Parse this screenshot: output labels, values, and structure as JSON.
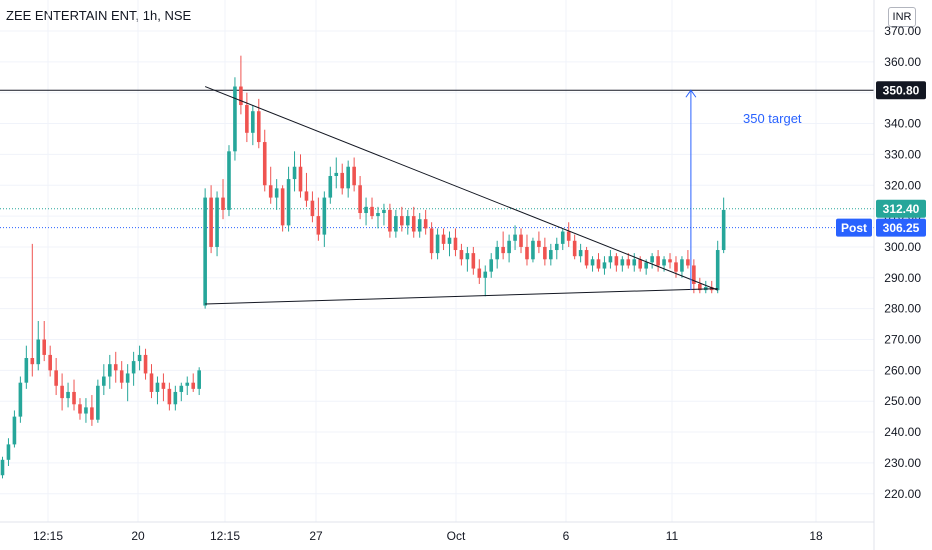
{
  "header": {
    "title": "ZEE ENTERTAIN ENT, 1h, NSE"
  },
  "currency_label": "INR",
  "annotation": {
    "target_text": "350 target"
  },
  "colors": {
    "up": "#26a69a",
    "down": "#ef5350",
    "trend_line": "#131722",
    "arrow": "#2962ff",
    "last_price_bg": "#26a69a",
    "post_bg": "#2962ff",
    "level_bg": "#131722"
  },
  "chart_data": {
    "type": "candlestick",
    "title": "ZEE ENTERTAIN ENT, 1h, NSE",
    "ylim": [
      210,
      374
    ],
    "y_ticks": [
      220,
      230,
      240,
      250,
      260,
      270,
      280,
      290,
      300,
      310,
      320,
      330,
      340,
      350,
      360,
      370
    ],
    "y_tick_labels": [
      "220.00",
      "230.00",
      "240.00",
      "250.00",
      "260.00",
      "270.00",
      "280.00",
      "290.00",
      "300.00",
      "310.00",
      "320.00",
      "330.00",
      "340.00",
      "350.00",
      "360.00",
      "370.00"
    ],
    "x_ticks": [
      "12:15",
      "20",
      "12:15",
      "27",
      "Oct",
      "6",
      "11",
      "18"
    ],
    "price_labels": [
      {
        "text": "350.80",
        "value": 350.8,
        "kind": "level"
      },
      {
        "text": "312.40",
        "value": 312.4,
        "kind": "last"
      },
      {
        "text": "306.25",
        "value": 306.25,
        "kind": "post",
        "tag": "Post"
      }
    ],
    "horizontal_level": 350.8,
    "trend_lines": [
      {
        "name": "upper",
        "from": {
          "bar": 34,
          "price": 352
        },
        "to": {
          "bar": 120,
          "price": 286
        }
      },
      {
        "name": "lower",
        "from": {
          "bar": 34,
          "price": 281.5
        },
        "to": {
          "bar": 120,
          "price": 286.5
        }
      }
    ],
    "target_arrow": {
      "bar": 115,
      "from": 286,
      "to": 350.8
    },
    "candles": [
      [
        226,
        232,
        225,
        231
      ],
      [
        231,
        238,
        229,
        236
      ],
      [
        236,
        247,
        235,
        245
      ],
      [
        245,
        258,
        243,
        256
      ],
      [
        256,
        268,
        254,
        264
      ],
      [
        264,
        301,
        258,
        262
      ],
      [
        262,
        276,
        260,
        270
      ],
      [
        270,
        276,
        263,
        265
      ],
      [
        265,
        268,
        258,
        260
      ],
      [
        260,
        264,
        252,
        255
      ],
      [
        255,
        259,
        247,
        251
      ],
      [
        251,
        256,
        248,
        253
      ],
      [
        253,
        257,
        247,
        249
      ],
      [
        249,
        251,
        244,
        246
      ],
      [
        246,
        251,
        243,
        248
      ],
      [
        248,
        252,
        242,
        244
      ],
      [
        244,
        257,
        243,
        255
      ],
      [
        255,
        262,
        252,
        258
      ],
      [
        258,
        265,
        254,
        262
      ],
      [
        262,
        266,
        256,
        260
      ],
      [
        260,
        263,
        254,
        256
      ],
      [
        256,
        262,
        250,
        259
      ],
      [
        259,
        266,
        255,
        263
      ],
      [
        263,
        268,
        260,
        265
      ],
      [
        265,
        267,
        257,
        259
      ],
      [
        259,
        262,
        251,
        253
      ],
      [
        253,
        258,
        249,
        256
      ],
      [
        256,
        259,
        250,
        254
      ],
      [
        254,
        256,
        247,
        249
      ],
      [
        249,
        255,
        247,
        253
      ],
      [
        253,
        256,
        250,
        255
      ],
      [
        255,
        258,
        252,
        256
      ],
      [
        256,
        259,
        253,
        254
      ],
      [
        254,
        261,
        252,
        260
      ],
      [
        281,
        319,
        280,
        316
      ],
      [
        316,
        320,
        298,
        300
      ],
      [
        300,
        318,
        297,
        316
      ],
      [
        316,
        322,
        309,
        312
      ],
      [
        312,
        333,
        310,
        331
      ],
      [
        331,
        355,
        328,
        352
      ],
      [
        352,
        362,
        343,
        346
      ],
      [
        346,
        350,
        334,
        337
      ],
      [
        337,
        346,
        333,
        344
      ],
      [
        344,
        348,
        332,
        334
      ],
      [
        334,
        338,
        318,
        320
      ],
      [
        320,
        326,
        314,
        316
      ],
      [
        316,
        322,
        312,
        319
      ],
      [
        319,
        320,
        305,
        307
      ],
      [
        307,
        326,
        305,
        322
      ],
      [
        322,
        331,
        318,
        326
      ],
      [
        326,
        330,
        316,
        318
      ],
      [
        318,
        324,
        313,
        315
      ],
      [
        315,
        318,
        308,
        310
      ],
      [
        310,
        316,
        302,
        304
      ],
      [
        304,
        318,
        300,
        316
      ],
      [
        316,
        326,
        314,
        323
      ],
      [
        323,
        329,
        319,
        324
      ],
      [
        324,
        327,
        317,
        319
      ],
      [
        319,
        328,
        316,
        326
      ],
      [
        326,
        329,
        318,
        320
      ],
      [
        320,
        323,
        309,
        311
      ],
      [
        311,
        316,
        307,
        313
      ],
      [
        313,
        316,
        309,
        310
      ],
      [
        310,
        313,
        306,
        311
      ],
      [
        311,
        314,
        307,
        312
      ],
      [
        312,
        314,
        303,
        305
      ],
      [
        305,
        312,
        303,
        310
      ],
      [
        310,
        313,
        305,
        307
      ],
      [
        307,
        312,
        304,
        310
      ],
      [
        310,
        313,
        303,
        305
      ],
      [
        305,
        311,
        303,
        309
      ],
      [
        309,
        312,
        304,
        306
      ],
      [
        306,
        308,
        296,
        298
      ],
      [
        298,
        306,
        296,
        304
      ],
      [
        304,
        306,
        299,
        301
      ],
      [
        301,
        305,
        297,
        303
      ],
      [
        303,
        306,
        297,
        299
      ],
      [
        299,
        301,
        294,
        296
      ],
      [
        296,
        300,
        292,
        298
      ],
      [
        298,
        300,
        291,
        293
      ],
      [
        293,
        296,
        288,
        290
      ],
      [
        290,
        294,
        284,
        292
      ],
      [
        292,
        298,
        290,
        296
      ],
      [
        296,
        302,
        293,
        300
      ],
      [
        300,
        305,
        296,
        298
      ],
      [
        298,
        304,
        295,
        302
      ],
      [
        302,
        307,
        299,
        304
      ],
      [
        304,
        306,
        298,
        300
      ],
      [
        300,
        304,
        294,
        296
      ],
      [
        296,
        303,
        295,
        302
      ],
      [
        302,
        305,
        298,
        300
      ],
      [
        300,
        303,
        294,
        296
      ],
      [
        296,
        301,
        294,
        299
      ],
      [
        299,
        303,
        296,
        301
      ],
      [
        301,
        306,
        299,
        305
      ],
      [
        305,
        308,
        300,
        302
      ],
      [
        302,
        304,
        296,
        297
      ],
      [
        297,
        301,
        295,
        299
      ],
      [
        299,
        300,
        293,
        294
      ],
      [
        294,
        297,
        292,
        296
      ],
      [
        296,
        298,
        292,
        293
      ],
      [
        293,
        297,
        291,
        295
      ],
      [
        295,
        299,
        293,
        297
      ],
      [
        297,
        298,
        292,
        294
      ],
      [
        294,
        297,
        292,
        296
      ],
      [
        296,
        298,
        293,
        294
      ],
      [
        294,
        298,
        292,
        296
      ],
      [
        296,
        297,
        292,
        293
      ],
      [
        293,
        296,
        291,
        295
      ],
      [
        295,
        298,
        293,
        297
      ],
      [
        297,
        299,
        292,
        294
      ],
      [
        294,
        297,
        292,
        296
      ],
      [
        296,
        298,
        293,
        295
      ],
      [
        295,
        297,
        290,
        292
      ],
      [
        292,
        297,
        290,
        296
      ],
      [
        296,
        299,
        293,
        294
      ],
      [
        294,
        296,
        285,
        288
      ],
      [
        288,
        290,
        285,
        286
      ],
      [
        286,
        289,
        285,
        287
      ],
      [
        287,
        289,
        285,
        286
      ],
      [
        286,
        302,
        285,
        299
      ],
      [
        299,
        316,
        298,
        312
      ]
    ]
  }
}
